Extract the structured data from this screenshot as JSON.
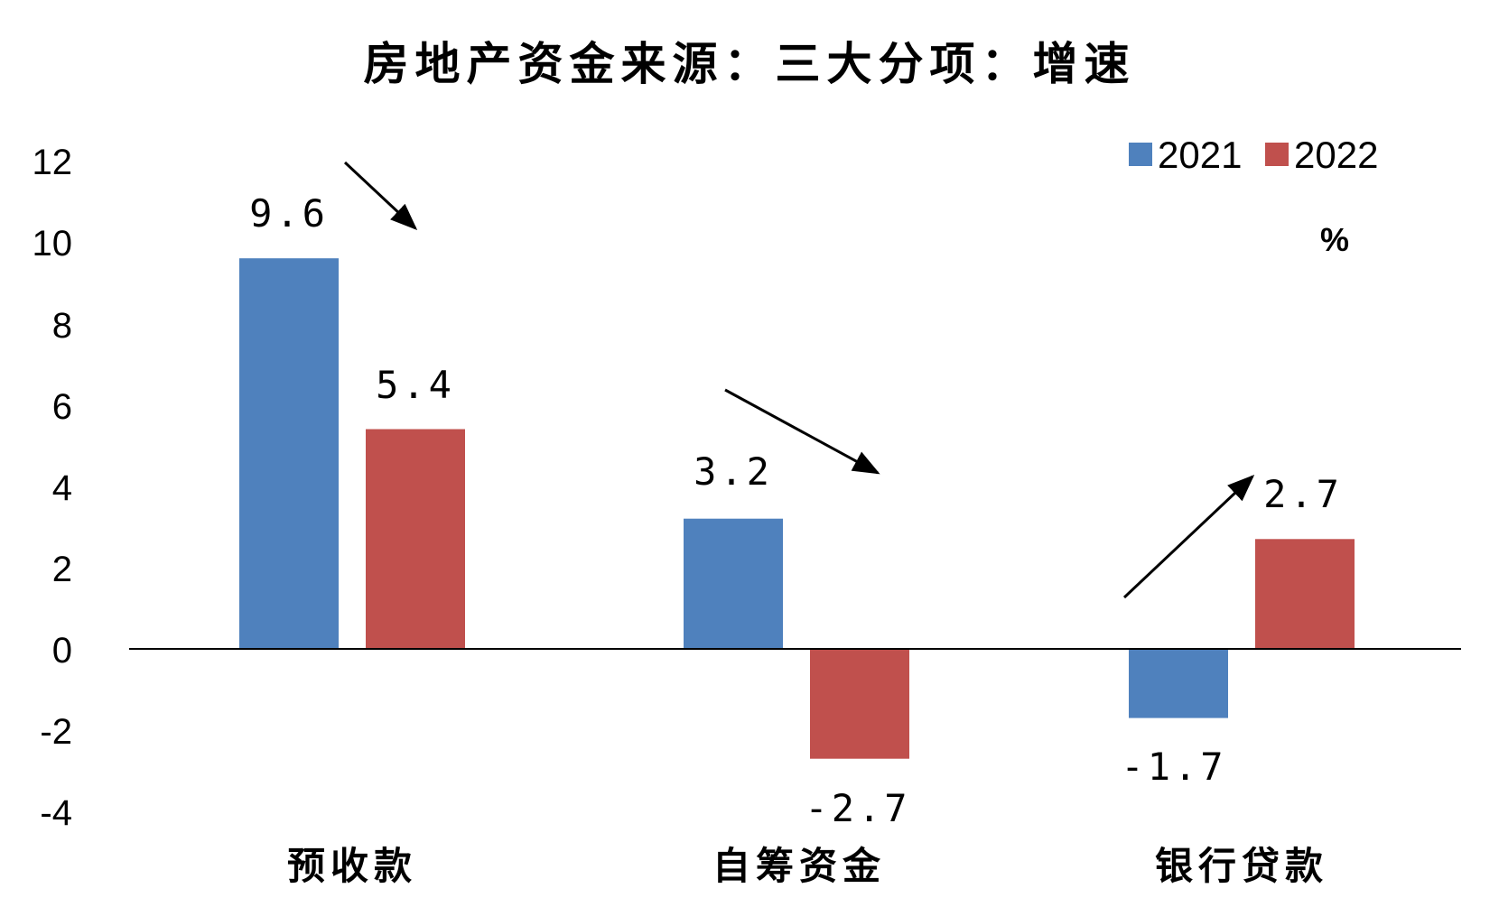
{
  "chart_data": {
    "type": "bar",
    "title": "房地产资金来源：三大分项：增速",
    "unit": "%",
    "categories": [
      "预收款",
      "自筹资金",
      "银行贷款"
    ],
    "series": [
      {
        "name": "2021",
        "values": [
          9.6,
          3.2,
          -1.7
        ],
        "color": "#4f81bd"
      },
      {
        "name": "2022",
        "values": [
          5.4,
          -2.7,
          2.7
        ],
        "color": "#c0504d"
      }
    ],
    "data_labels": [
      [
        "9.6",
        "3.2",
        "-1.7"
      ],
      [
        "5.4",
        "-2.7",
        "2.7"
      ]
    ],
    "yticks": [
      "12",
      "10",
      "8",
      "6",
      "4",
      "2",
      "0",
      "-2",
      "-4"
    ],
    "ylim": [
      -4,
      12
    ],
    "grid": false,
    "legend": "top-right",
    "annotations": [
      {
        "type": "arrow",
        "direction": "down",
        "category": "预收款"
      },
      {
        "type": "arrow",
        "direction": "down",
        "category": "自筹资金"
      },
      {
        "type": "arrow",
        "direction": "up",
        "category": "银行贷款"
      }
    ]
  }
}
